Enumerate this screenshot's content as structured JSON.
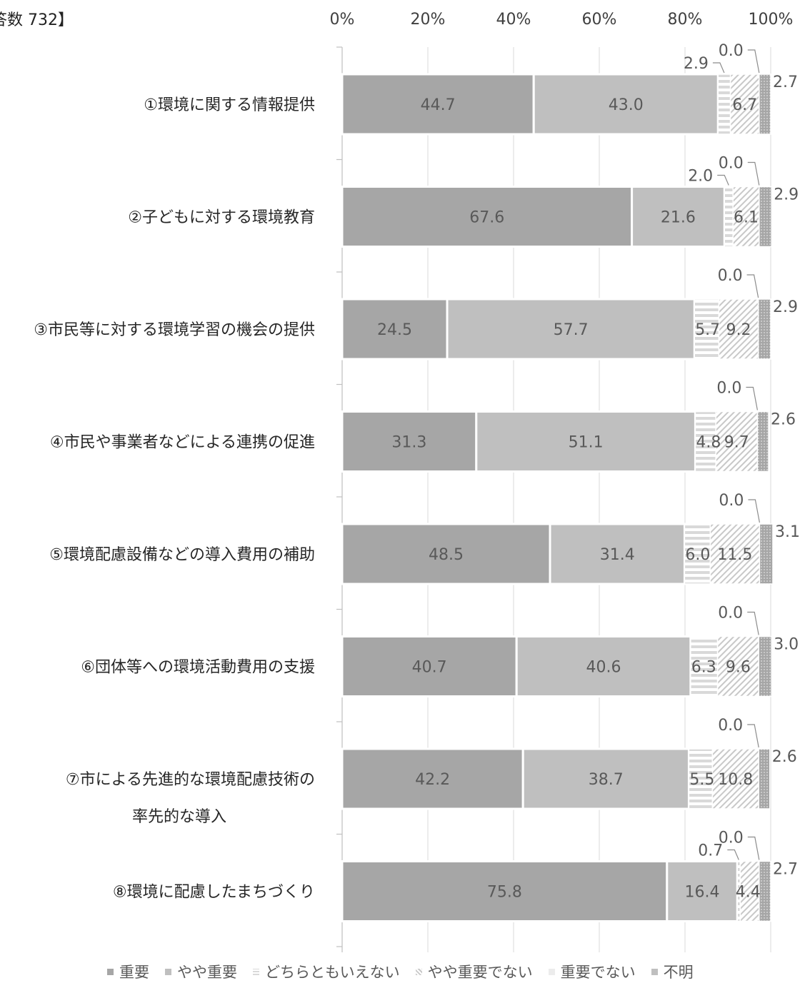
{
  "header_text": "答数 732】",
  "chart_data": {
    "type": "bar",
    "orientation": "horizontal",
    "stacked": "percent",
    "title": "",
    "xlabel": "",
    "ylabel": "",
    "xlim": [
      0,
      100
    ],
    "x_ticks": [
      "0%",
      "20%",
      "40%",
      "60%",
      "80%",
      "100%"
    ],
    "grid": true,
    "legend_position": "bottom",
    "categories": [
      "①環境に関する情報提供",
      "②子どもに対する環境教育",
      "③市民等に対する環境学習の機会の提供",
      "④市民や事業者などによる連携の促進",
      "⑤環境配慮設備などの導入費用の補助",
      "⑥団体等への環境活動費用の支援",
      "⑦市による先進的な環境配慮技術の\n率先的な導入",
      "⑧環境に配慮したまちづくり"
    ],
    "series": [
      {
        "name": "重要",
        "color": "#a6a6a6",
        "pattern": "solid",
        "values": [
          44.7,
          67.6,
          24.5,
          31.3,
          48.5,
          40.7,
          42.2,
          75.8
        ]
      },
      {
        "name": "やや重要",
        "color": "#bfbfbf",
        "pattern": "solid",
        "values": [
          43.0,
          21.6,
          57.7,
          51.1,
          31.4,
          40.6,
          38.7,
          16.4
        ]
      },
      {
        "name": "どちらともいえない",
        "color": "#d9d9d9",
        "pattern": "horizontal-stripes",
        "values": [
          2.9,
          2.0,
          5.7,
          4.8,
          6.0,
          6.3,
          5.5,
          0.7
        ]
      },
      {
        "name": "やや重要でない",
        "color": "#d9d9d9",
        "pattern": "diagonal-stripes",
        "values": [
          6.7,
          6.1,
          9.2,
          9.7,
          11.5,
          9.6,
          10.8,
          4.4
        ]
      },
      {
        "name": "重要でない",
        "color": "#d9d9d9",
        "pattern": "light",
        "values": [
          0.0,
          0.0,
          0.0,
          0.0,
          0.0,
          0.0,
          0.0,
          0.0
        ]
      },
      {
        "name": "不明",
        "color": "#bfbfbf",
        "pattern": "dots",
        "values": [
          2.7,
          2.9,
          2.9,
          2.6,
          3.1,
          3.0,
          2.6,
          2.7
        ]
      }
    ]
  }
}
